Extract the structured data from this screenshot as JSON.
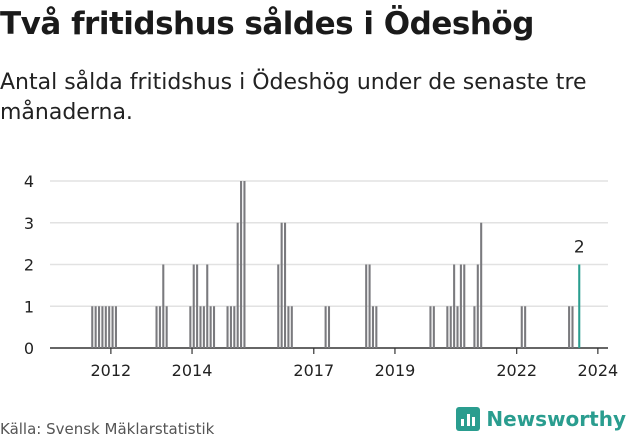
{
  "header": {
    "title": "Två fritidshus såldes i Ödeshög",
    "subtitle": "Antal sålda fritidshus i Ödeshög under de senaste tre månaderna."
  },
  "footer": {
    "source": "Källa: Svensk Mäklarstatistik",
    "brand": "Newsworthy"
  },
  "colors": {
    "bar": "#7a7a7e",
    "highlight": "#2a9d8f",
    "grid": "#e2e2e2",
    "axis": "#333333"
  },
  "chart_data": {
    "type": "bar",
    "title": "Två fritidshus såldes i Ödeshög",
    "xlabel": "",
    "ylabel": "",
    "ylim": [
      0,
      4
    ],
    "yticks": [
      0,
      1,
      2,
      3,
      4
    ],
    "xticks": [
      "2012",
      "2014",
      "2017",
      "2019",
      "2022",
      "2024"
    ],
    "x_start": "2011-01",
    "x_end": "2024-09",
    "annotation": {
      "x": "2024-01",
      "value": 2,
      "label": "2"
    },
    "series": [
      {
        "name": "Sålda fritidshus",
        "x": [
          "2012-01",
          "2012-02",
          "2012-03",
          "2012-04",
          "2012-05",
          "2012-06",
          "2012-07",
          "2012-08",
          "2013-08",
          "2013-09",
          "2013-10",
          "2013-11",
          "2014-06",
          "2014-07",
          "2014-08",
          "2014-09",
          "2014-10",
          "2014-11",
          "2014-12",
          "2015-01",
          "2015-05",
          "2015-06",
          "2015-07",
          "2015-08",
          "2015-09",
          "2015-10",
          "2016-08",
          "2016-09",
          "2016-10",
          "2016-11",
          "2016-12",
          "2017-10",
          "2017-11",
          "2018-10",
          "2018-11",
          "2018-12",
          "2019-01",
          "2020-05",
          "2020-06",
          "2020-10",
          "2020-11",
          "2020-12",
          "2021-01",
          "2021-02",
          "2021-03",
          "2021-06",
          "2021-07",
          "2021-08",
          "2022-08",
          "2022-09",
          "2023-10",
          "2023-11",
          "2024-01"
        ],
        "values": [
          1,
          1,
          1,
          1,
          1,
          1,
          1,
          1,
          1,
          1,
          2,
          1,
          1,
          2,
          2,
          1,
          1,
          2,
          1,
          1,
          1,
          1,
          1,
          3,
          4,
          4,
          2,
          3,
          3,
          1,
          1,
          1,
          1,
          2,
          2,
          1,
          1,
          1,
          1,
          1,
          1,
          2,
          1,
          2,
          2,
          1,
          2,
          3,
          1,
          1,
          1,
          1,
          2
        ]
      }
    ]
  }
}
